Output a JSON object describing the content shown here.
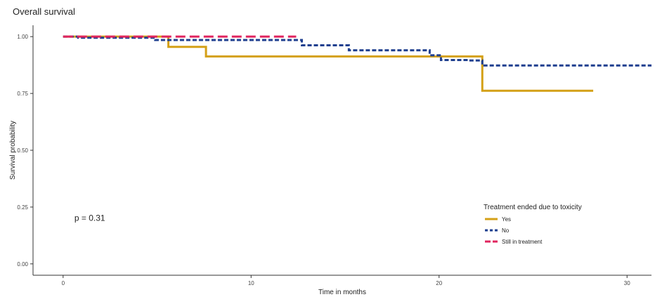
{
  "chart_data": {
    "type": "line",
    "title": "Overall survival",
    "xlabel": "Time in months",
    "ylabel": "Survival probability",
    "xlim": [
      -1.6,
      31.3
    ],
    "ylim": [
      -0.05,
      1.05
    ],
    "x_ticks": [
      0,
      10,
      20,
      30
    ],
    "y_ticks": [
      0.0,
      0.25,
      0.5,
      0.75,
      1.0
    ],
    "x_tick_labels": [
      "0",
      "10",
      "20",
      "30"
    ],
    "y_tick_labels": [
      "0.00",
      "0.25",
      "0.50",
      "0.75",
      "1.00"
    ],
    "grid": false,
    "legend_placement": "bottom-right",
    "legend_title": "Treatment ended due to toxicity",
    "annotation": "p = 0.31",
    "series": [
      {
        "name": "Yes",
        "color": "#D4A017",
        "dash": "solid",
        "step_x": [
          0,
          5.6,
          7.6,
          22.3,
          28.2
        ],
        "step_y": [
          1.0,
          0.955,
          0.913,
          0.762,
          0.762
        ]
      },
      {
        "name": "No",
        "color": "#1F3F8F",
        "dash": "dotted",
        "step_x": [
          0,
          0.8,
          4.9,
          12.7,
          15.2,
          19.5,
          20.1,
          21.6,
          22.3,
          31.3
        ],
        "step_y": [
          1.0,
          0.995,
          0.985,
          0.962,
          0.94,
          0.918,
          0.897,
          0.895,
          0.873,
          0.873
        ]
      },
      {
        "name": "Still in treatment",
        "color": "#E0245E",
        "dash": "dashed",
        "step_x": [
          0,
          12.4
        ],
        "step_y": [
          1.0,
          1.0
        ]
      }
    ]
  }
}
